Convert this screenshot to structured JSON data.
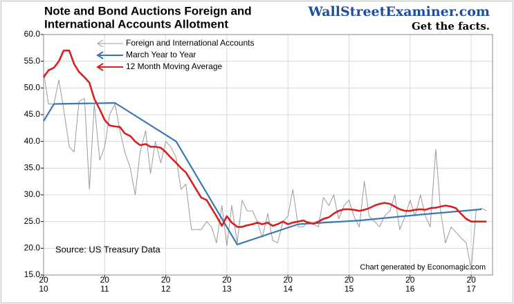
{
  "chart_data": {
    "type": "line",
    "title": [
      "Note and Bond Auctions Foreign and",
      "International Accounts Allotment"
    ],
    "brand": "WallStreetExaminer.com",
    "tagline": "Get the facts.",
    "annotations": [
      "Source: US Treasury Data",
      "Chart generated by Economagic.com"
    ],
    "x": [
      2010,
      2010.08,
      2010.17,
      2010.25,
      2010.33,
      2010.42,
      2010.5,
      2010.58,
      2010.67,
      2010.75,
      2010.83,
      2010.92,
      2011,
      2011.08,
      2011.17,
      2011.25,
      2011.33,
      2011.42,
      2011.5,
      2011.58,
      2011.67,
      2011.75,
      2011.83,
      2011.92,
      2012,
      2012.08,
      2012.17,
      2012.25,
      2012.33,
      2012.42,
      2012.5,
      2012.58,
      2012.67,
      2012.75,
      2012.83,
      2012.92,
      2013,
      2013.08,
      2013.17,
      2013.25,
      2013.33,
      2013.42,
      2013.5,
      2013.58,
      2013.67,
      2013.75,
      2013.83,
      2013.92,
      2014,
      2014.08,
      2014.17,
      2014.25,
      2014.33,
      2014.42,
      2014.5,
      2014.58,
      2014.67,
      2014.75,
      2014.83,
      2014.92,
      2015,
      2015.08,
      2015.17,
      2015.25,
      2015.33,
      2015.42,
      2015.5,
      2015.58,
      2015.67,
      2015.75,
      2015.83,
      2015.92,
      2016,
      2016.08,
      2016.17,
      2016.25,
      2016.33,
      2016.42,
      2016.5,
      2016.58,
      2016.67,
      2016.75,
      2016.83,
      2016.92,
      2017,
      2017.08,
      2017.17,
      2017.25
    ],
    "series": [
      {
        "name": "Foreign and International Accounts",
        "color": "#999999",
        "width": 1,
        "values": [
          53,
          47,
          47,
          51.5,
          46,
          39,
          38,
          47.5,
          48,
          31,
          47,
          36.5,
          39,
          45,
          47,
          42,
          38,
          35,
          30,
          38,
          42,
          34,
          40,
          36,
          40,
          39,
          37,
          31,
          32,
          23.5,
          23.5,
          23.5,
          25,
          24,
          21,
          28,
          20.5,
          28,
          21,
          29,
          27,
          27,
          25,
          22,
          26.5,
          21.5,
          21,
          25,
          26,
          31,
          24,
          24,
          25,
          24.5,
          24,
          29.5,
          28,
          30,
          25.5,
          28,
          29,
          26,
          24,
          32.5,
          26,
          25,
          24,
          26,
          27,
          30,
          23.5,
          26,
          29,
          26,
          30,
          26,
          24,
          38.5,
          27,
          21,
          24,
          23,
          22,
          21,
          16,
          27,
          27.5,
          27
        ]
      },
      {
        "name": "March Year to Year",
        "color": "#3a78b4",
        "width": 2.2,
        "x": [
          2010,
          2010.17,
          2011.17,
          2012.17,
          2013.17,
          2014.17,
          2015.17,
          2016.17,
          2017.17
        ],
        "values": [
          43.8,
          47,
          47.2,
          40,
          20.7,
          24.5,
          25.2,
          26.3,
          27.3
        ]
      },
      {
        "name": "12 Month Moving Average",
        "color": "#d81e1e",
        "width": 2.6,
        "values": [
          52,
          53.3,
          53.8,
          55,
          57,
          57,
          54.5,
          53,
          52,
          51,
          48,
          46,
          44,
          43,
          42.8,
          42.7,
          41.5,
          41,
          40,
          39.3,
          39.5,
          39,
          39,
          38.8,
          38,
          37,
          36,
          35,
          34.2,
          32.5,
          31,
          29.5,
          29,
          27.5,
          26,
          24.2,
          26,
          24.8,
          24,
          24,
          24.3,
          24.5,
          24.8,
          24.5,
          24.8,
          24.2,
          24.5,
          25,
          24.5,
          24.8,
          25,
          25.2,
          24.8,
          24.6,
          25,
          25.5,
          25.8,
          26.5,
          27,
          27.3,
          27.3,
          27.2,
          27,
          27.2,
          27.5,
          28,
          28.3,
          28.5,
          28.3,
          27.8,
          27.3,
          27,
          27,
          27.2,
          27.3,
          27.2,
          27.5,
          27.6,
          27.8,
          28,
          27.8,
          27.5,
          26.5,
          25.5,
          25,
          25,
          25,
          25
        ]
      }
    ],
    "xlim": [
      2010,
      2017.35
    ],
    "xticks": [
      {
        "value": 2010,
        "label": "2010"
      },
      {
        "value": 2011,
        "label": "2011"
      },
      {
        "value": 2012,
        "label": "2012"
      },
      {
        "value": 2013,
        "label": "2013"
      },
      {
        "value": 2014,
        "label": "2014"
      },
      {
        "value": 2015,
        "label": "2015"
      },
      {
        "value": 2016,
        "label": "2016"
      },
      {
        "value": 2017,
        "label": "2017"
      }
    ],
    "ylim": [
      15,
      60
    ],
    "yticks": [
      {
        "value": 15,
        "label": "15.0"
      },
      {
        "value": 20,
        "label": "20.0"
      },
      {
        "value": 25,
        "label": "25.0"
      },
      {
        "value": 30,
        "label": "30.0"
      },
      {
        "value": 35,
        "label": "35.0"
      },
      {
        "value": 40,
        "label": "40.0"
      },
      {
        "value": 45,
        "label": "45.0"
      },
      {
        "value": 50,
        "label": "50.0"
      },
      {
        "value": 55,
        "label": "55.0"
      },
      {
        "value": 60,
        "label": "60.0"
      }
    ],
    "grid": true
  }
}
